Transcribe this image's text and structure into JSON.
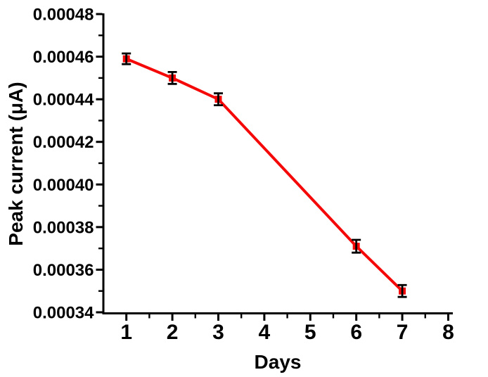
{
  "figure": {
    "background": "#ffffff"
  },
  "chart_data": {
    "type": "line",
    "title": "",
    "xlabel": "Days",
    "ylabel": "Peak current (μA)",
    "x": [
      1,
      2,
      3,
      6,
      7
    ],
    "series": [
      {
        "name": "Peak current",
        "values": [
          0.000459,
          0.00045,
          0.00044,
          0.000371,
          0.00035
        ],
        "errors": [
          2.5e-06,
          2.8e-06,
          2.8e-06,
          3e-06,
          2.8e-06
        ],
        "color": "#f50808",
        "marker": "square",
        "error_color": "#000000"
      }
    ],
    "xlim": [
      0.5,
      8.1
    ],
    "ylim": [
      0.00034,
      0.00048
    ],
    "x_major_ticks": [
      1,
      2,
      3,
      4,
      5,
      6,
      7,
      8
    ],
    "x_minor_ticks": [
      1.5,
      2.5,
      3.5,
      4.5,
      5.5,
      6.5,
      7.5
    ],
    "y_major_ticks": [
      0.00048,
      0.00046,
      0.00044,
      0.00042,
      0.0004,
      0.00038,
      0.00036,
      0.00034
    ],
    "y_tick_labels": [
      "0.00048",
      "0.00046",
      "0.00044",
      "0.00042",
      "0.00040",
      "0.00038",
      "0.00036",
      "0.00034"
    ],
    "y_minor_ticks": [
      0.00047,
      0.00045,
      0.00043,
      0.00041,
      0.00039,
      0.00037,
      0.00035
    ],
    "grid": false,
    "legend": "none",
    "axis_color": "#000000"
  }
}
